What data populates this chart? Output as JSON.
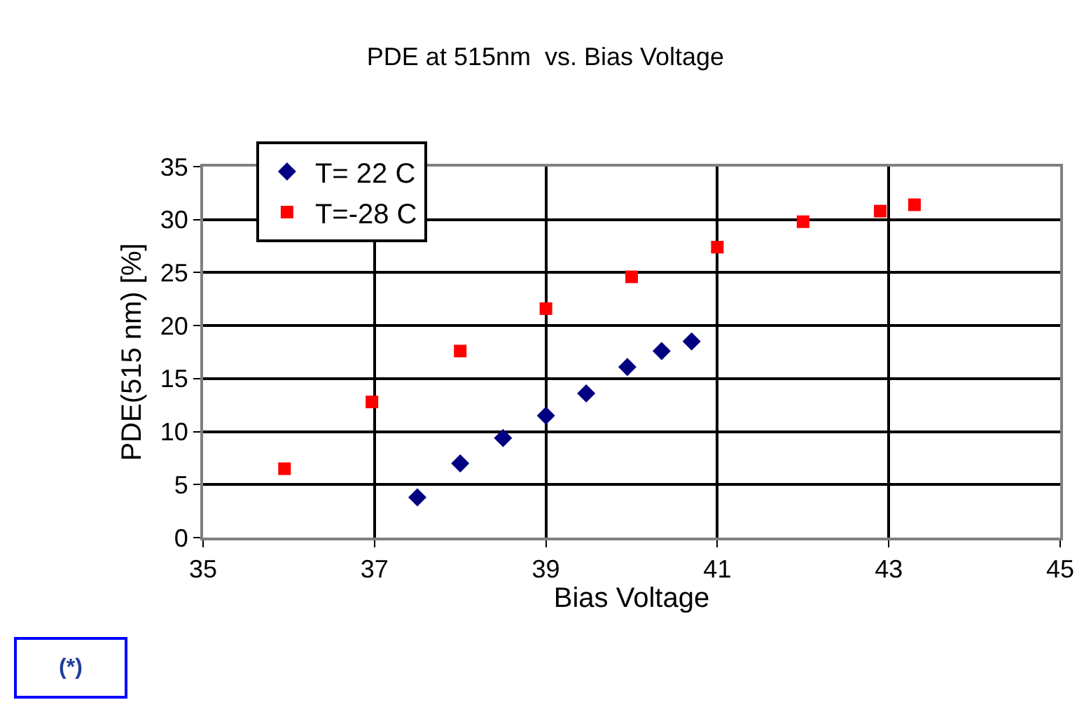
{
  "chart_data": {
    "type": "scatter",
    "title": "PDE at 515nm  vs. Bias Voltage",
    "xlabel": "Bias Voltage",
    "ylabel": "PDE(515 nm) [%]",
    "series": [
      {
        "name": "T= 22 C",
        "color": "#000080",
        "marker": "diamond",
        "x": [
          37.5,
          38.0,
          38.5,
          39.0,
          39.47,
          39.95,
          40.35,
          40.7
        ],
        "values": [
          3.8,
          7.0,
          9.4,
          11.5,
          13.6,
          16.1,
          17.6,
          18.5
        ]
      },
      {
        "name": "T=-28 C",
        "color": "#ff0000",
        "marker": "square",
        "x": [
          35.95,
          36.97,
          38.0,
          39.0,
          40.0,
          41.0,
          42.0,
          42.9,
          43.3
        ],
        "values": [
          6.5,
          12.8,
          17.6,
          21.6,
          24.6,
          27.4,
          29.8,
          30.8,
          31.4
        ]
      }
    ],
    "xlim": [
      35,
      45
    ],
    "xticks": [
      35,
      37,
      39,
      41,
      43,
      45
    ],
    "ylim": [
      0,
      35
    ],
    "yticks": [
      0,
      5,
      10,
      15,
      20,
      25,
      30,
      35
    ],
    "grid": true,
    "legend": "top left",
    "annotations": [
      "(*)"
    ]
  }
}
